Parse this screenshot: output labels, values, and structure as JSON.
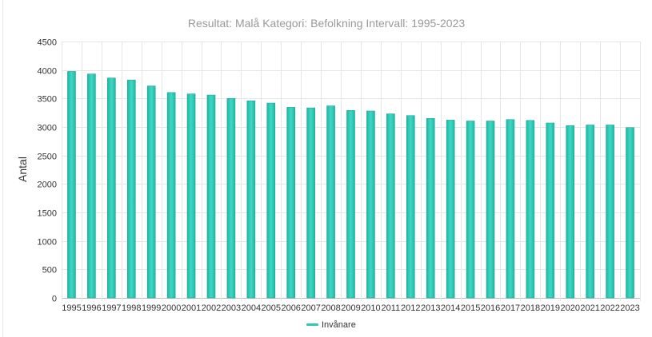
{
  "chart_data": {
    "type": "bar",
    "title": "Resultat: Malå Kategori: Befolkning Intervall: 1995-2023",
    "xlabel": "",
    "ylabel": "Antal",
    "ylim": [
      0,
      4500
    ],
    "yticks": [
      0,
      500,
      1000,
      1500,
      2000,
      2500,
      3000,
      3500,
      4000,
      4500
    ],
    "grid": true,
    "legend_position": "bottom",
    "categories": [
      "1995",
      "1996",
      "1997",
      "1998",
      "1999",
      "2000",
      "2001",
      "2002",
      "2003",
      "2004",
      "2005",
      "2006",
      "2007",
      "2008",
      "2009",
      "2010",
      "2011",
      "2012",
      "2013",
      "2014",
      "2015",
      "2016",
      "2017",
      "2018",
      "2019",
      "2020",
      "2021",
      "2022",
      "2023"
    ],
    "series": [
      {
        "name": "Invånare",
        "color": "#2ec9b5",
        "values": [
          3975,
          3930,
          3860,
          3825,
          3720,
          3605,
          3580,
          3560,
          3500,
          3460,
          3420,
          3345,
          3335,
          3370,
          3290,
          3280,
          3230,
          3200,
          3150,
          3120,
          3105,
          3105,
          3130,
          3115,
          3070,
          3025,
          3035,
          3035,
          2990
        ]
      }
    ]
  }
}
